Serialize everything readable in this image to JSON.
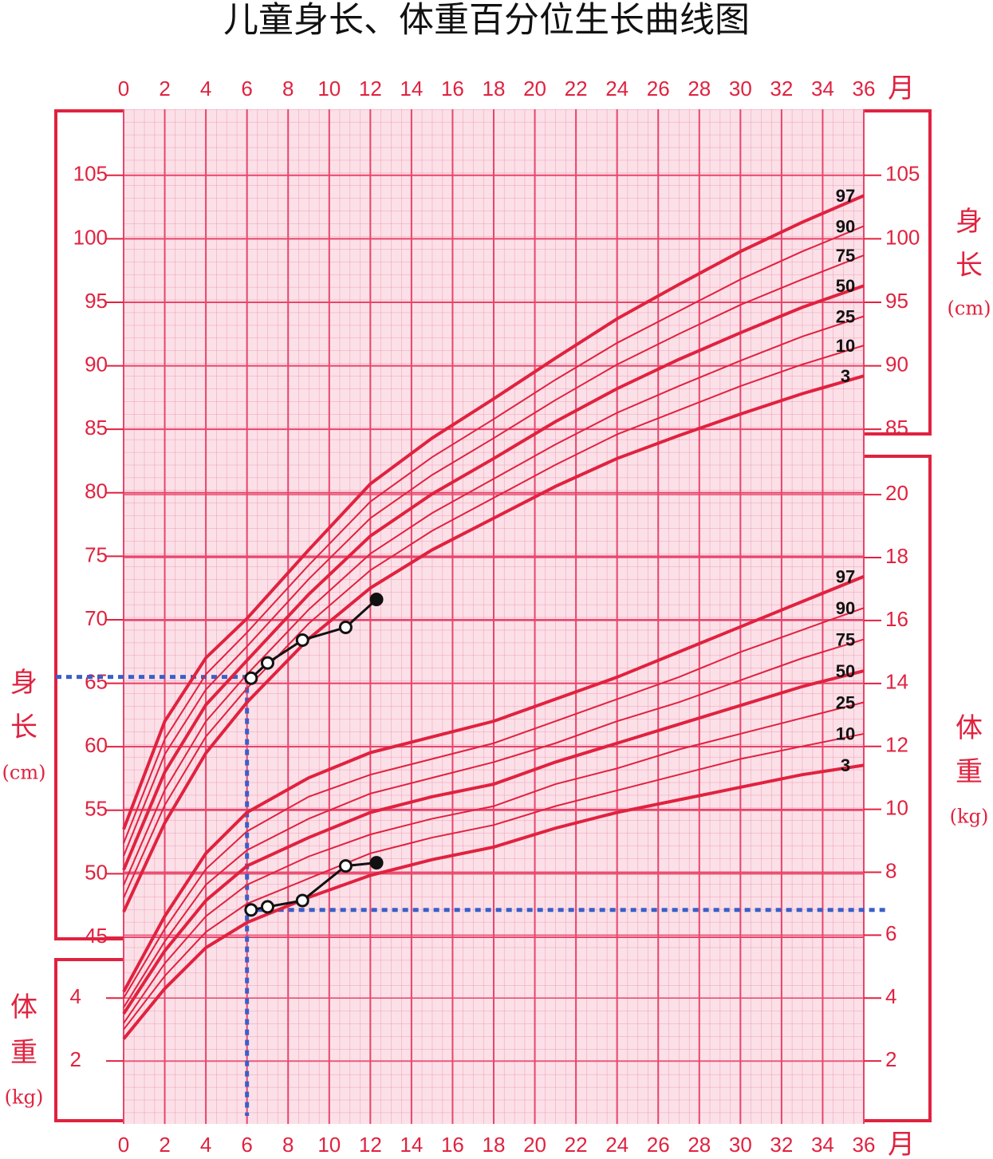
{
  "chart_data": {
    "type": "line",
    "title": "儿童身长、体重百分位生长曲线图",
    "x_unit": "月",
    "xlim": [
      0,
      36
    ],
    "xticks": [
      0,
      2,
      4,
      6,
      8,
      10,
      12,
      14,
      16,
      18,
      20,
      22,
      24,
      26,
      28,
      30,
      32,
      34,
      36
    ],
    "ylim": [
      30.3,
      110.2
    ],
    "yticks": [
      45,
      50,
      55,
      60,
      65,
      70,
      75,
      80,
      85,
      90,
      95,
      100,
      105
    ],
    "yticks_right": [
      85,
      90,
      95,
      100,
      105
    ],
    "y2lim": [
      0,
      32.25
    ],
    "y2ticks": [
      2,
      4,
      6,
      8,
      10,
      12,
      14,
      16,
      18,
      20
    ],
    "y2ticks_left": [
      2,
      4
    ],
    "y_label": [
      "身",
      "长",
      "(cm)"
    ],
    "y2_label": [
      "体",
      "重",
      "(kg)"
    ],
    "grid": true,
    "x": [
      0,
      2,
      4,
      6,
      9,
      12,
      15,
      18,
      21,
      24,
      27,
      30,
      33,
      36
    ],
    "series": [
      {
        "name": "97",
        "color": "#e0223f",
        "width": 4,
        "values": [
          53.5,
          62,
          67,
          70.1,
          75.5,
          80.7,
          84.3,
          87.4,
          90.6,
          93.7,
          96.4,
          99.0,
          101.3,
          103.4
        ]
      },
      {
        "name": "90",
        "color": "#e0223f",
        "width": 2,
        "values": [
          52.4,
          60.6,
          65.7,
          69,
          74.3,
          79.3,
          82.8,
          85.8,
          88.9,
          91.8,
          94.3,
          96.8,
          99,
          101
        ]
      },
      {
        "name": "75",
        "color": "#e0223f",
        "width": 2,
        "values": [
          51.4,
          59.4,
          64.5,
          67.9,
          73.2,
          78.0,
          81.4,
          84.3,
          87.3,
          90.1,
          92.5,
          94.8,
          96.8,
          98.7
        ]
      },
      {
        "name": "50",
        "color": "#e0223f",
        "width": 4,
        "values": [
          50.3,
          58,
          63.3,
          66.8,
          72,
          76.6,
          79.9,
          82.7,
          85.6,
          88.2,
          90.5,
          92.6,
          94.6,
          96.3
        ]
      },
      {
        "name": "25",
        "color": "#e0223f",
        "width": 2,
        "values": [
          49.1,
          56.6,
          62.0,
          65.7,
          70.8,
          75.2,
          78.4,
          81.1,
          83.8,
          86.3,
          88.4,
          90.4,
          92.3,
          93.9
        ]
      },
      {
        "name": "10",
        "color": "#e0223f",
        "width": 2,
        "values": [
          48.1,
          55.4,
          60.8,
          64.6,
          69.7,
          73.9,
          77.0,
          79.6,
          82.2,
          84.6,
          86.5,
          88.4,
          90.1,
          91.6
        ]
      },
      {
        "name": "3",
        "color": "#e0223f",
        "width": 4,
        "values": [
          47,
          54,
          59.5,
          63.5,
          68.5,
          72.5,
          75.5,
          78,
          80.5,
          82.7,
          84.5,
          86.2,
          87.8,
          89.2
        ]
      },
      {
        "name": "97",
        "color": "#e0223f",
        "width": 4,
        "axis": "y2",
        "values": [
          4.2,
          6.6,
          8.6,
          9.9,
          11,
          11.8,
          12.3,
          12.8,
          13.5,
          14.2,
          15,
          15.8,
          16.6,
          17.4
        ]
      },
      {
        "name": "90",
        "color": "#e0223f",
        "width": 2,
        "axis": "y2",
        "values": [
          4.0,
          6.2,
          8.1,
          9.3,
          10.4,
          11.1,
          11.6,
          12.1,
          12.8,
          13.5,
          14.2,
          15.0,
          15.7,
          16.4
        ]
      },
      {
        "name": "75",
        "color": "#e0223f",
        "width": 2,
        "axis": "y2",
        "values": [
          3.7,
          5.8,
          7.6,
          8.7,
          9.7,
          10.5,
          11.0,
          11.5,
          12.1,
          12.8,
          13.4,
          14.1,
          14.8,
          15.4
        ]
      },
      {
        "name": "50",
        "color": "#e0223f",
        "width": 4,
        "axis": "y2",
        "values": [
          3.5,
          5.5,
          7.1,
          8.2,
          9.1,
          9.9,
          10.4,
          10.8,
          11.5,
          12.1,
          12.7,
          13.3,
          13.9,
          14.4
        ]
      },
      {
        "name": "25",
        "color": "#e0223f",
        "width": 2,
        "axis": "y2",
        "values": [
          3.2,
          5.1,
          6.6,
          7.6,
          8.5,
          9.2,
          9.7,
          10.1,
          10.8,
          11.3,
          11.9,
          12.4,
          12.9,
          13.4
        ]
      },
      {
        "name": "10",
        "color": "#e0223f",
        "width": 2,
        "axis": "y2",
        "values": [
          3.0,
          4.7,
          6.1,
          7.0,
          7.8,
          8.6,
          9.1,
          9.5,
          10.1,
          10.6,
          11.1,
          11.6,
          12.0,
          12.4
        ]
      },
      {
        "name": "3",
        "color": "#e0223f",
        "width": 4,
        "axis": "y2",
        "values": [
          2.7,
          4.3,
          5.6,
          6.4,
          7.2,
          7.9,
          8.4,
          8.8,
          9.4,
          9.9,
          10.3,
          10.7,
          11.1,
          11.4
        ]
      }
    ],
    "child": [
      {
        "color": "#111111",
        "x": [
          6.2,
          7.0,
          8.7,
          10.8,
          12.3
        ],
        "values": [
          65.4,
          66.6,
          68.4,
          69.4,
          71.6
        ]
      },
      {
        "color": "#111111",
        "axis": "y2",
        "x": [
          6.2,
          7.0,
          8.7,
          10.8,
          12.3
        ],
        "values": [
          6.8,
          6.9,
          7.1,
          8.2,
          8.3
        ]
      }
    ],
    "reference": {
      "color": "#3a5fc8",
      "x": 6,
      "height": 65.5,
      "weight": 6.8
    }
  }
}
